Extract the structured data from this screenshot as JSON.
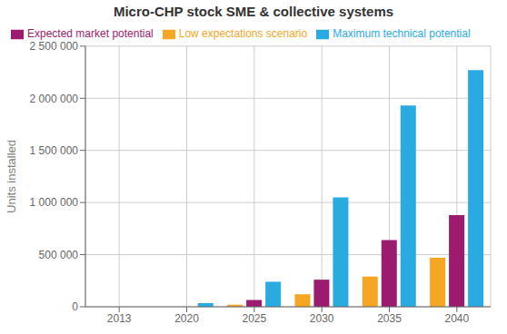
{
  "chart_data": {
    "type": "bar",
    "title": "Micro-CHP stock SME & collective systems",
    "ylabel": "Units installed",
    "categories": [
      "2013",
      "2020",
      "2025",
      "2030",
      "2035",
      "2040"
    ],
    "series": [
      {
        "name": "Low expectations scenario",
        "color": "#F5A623",
        "values": [
          0,
          0,
          20000,
          120000,
          290000,
          470000
        ]
      },
      {
        "name": "Expected market potential",
        "color": "#9B1B6E",
        "values": [
          0,
          0,
          65000,
          260000,
          640000,
          880000
        ]
      },
      {
        "name": "Maximum technical potential",
        "color": "#29ABE2",
        "values": [
          0,
          35000,
          240000,
          1050000,
          1930000,
          2270000
        ]
      }
    ],
    "ylim": [
      0,
      2500000
    ],
    "yticks": [
      0,
      {
        "value": 500000,
        "label": "500 000"
      },
      {
        "value": 1000000,
        "label": "1 000 000"
      },
      {
        "value": 1500000,
        "label": "1 500 000"
      },
      {
        "value": 2000000,
        "label": "2 000 000"
      },
      {
        "value": 2500000,
        "label": "2 500 000"
      }
    ],
    "grid": true,
    "legend": "upper left"
  }
}
